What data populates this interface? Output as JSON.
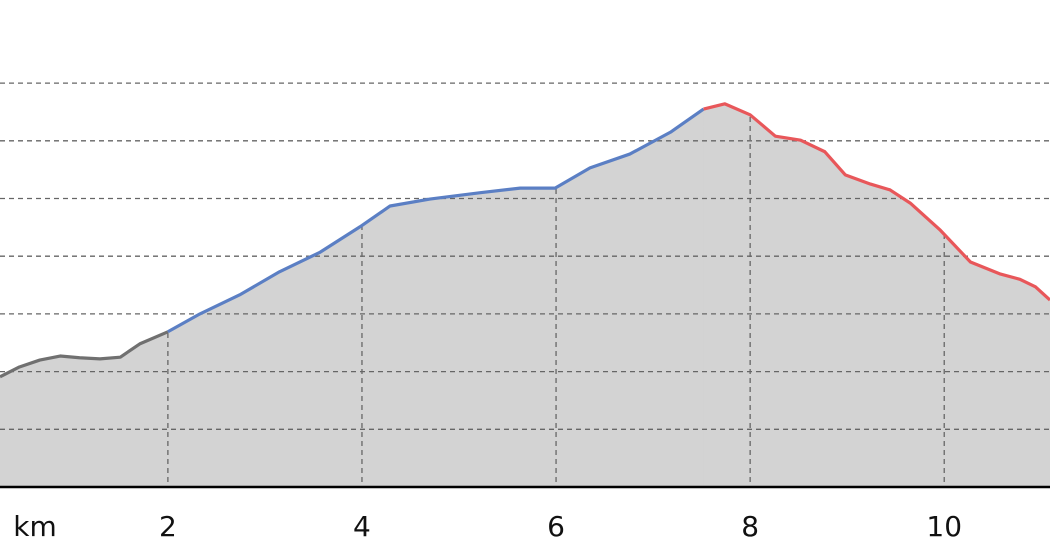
{
  "chart_data": {
    "type": "area",
    "x_unit_label": "km",
    "xlim": [
      0.27,
      11.09
    ],
    "xticks": [
      2,
      4,
      6,
      8,
      10
    ],
    "ylim": [
      0,
      8.44
    ],
    "yticks": [
      1,
      2,
      3,
      4,
      5,
      6,
      7
    ],
    "grid": true,
    "fill_color": "#d3d3d3",
    "series": [
      {
        "color": "#707070",
        "x": [
          0.27,
          0.47,
          0.68,
          0.89,
          1.09,
          1.3,
          1.51,
          1.71,
          2.0
        ],
        "values": [
          1.91,
          2.08,
          2.2,
          2.27,
          2.24,
          2.22,
          2.25,
          2.48,
          2.69
        ]
      },
      {
        "color": "#5b7fc4",
        "x": [
          2.0,
          2.33,
          2.74,
          3.15,
          3.57,
          3.98,
          4.29,
          4.7,
          5.22,
          5.63,
          5.99,
          6.35,
          6.76,
          7.18,
          7.52
        ],
        "values": [
          2.69,
          3.0,
          3.33,
          3.73,
          4.07,
          4.51,
          4.87,
          4.99,
          5.1,
          5.18,
          5.18,
          5.53,
          5.77,
          6.15,
          6.55
        ]
      },
      {
        "color": "#e8575a",
        "x": [
          7.52,
          7.74,
          8.0,
          8.26,
          8.52,
          8.77,
          8.98,
          9.24,
          9.44,
          9.65,
          9.96,
          10.27,
          10.58,
          10.78,
          10.94,
          11.09
        ],
        "values": [
          6.55,
          6.64,
          6.45,
          6.08,
          6.01,
          5.81,
          5.41,
          5.25,
          5.15,
          4.92,
          4.45,
          3.9,
          3.69,
          3.6,
          3.47,
          3.24
        ]
      }
    ]
  }
}
